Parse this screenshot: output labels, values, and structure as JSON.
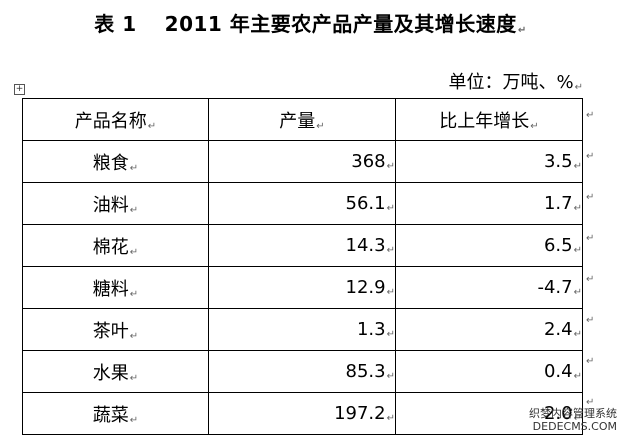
{
  "title": {
    "label": "表 1",
    "text": "2011 年主要农产品产量及其增长速度"
  },
  "unit": "单位：万吨、%",
  "table": {
    "headers": [
      "产品名称",
      "产量",
      "比上年增长"
    ],
    "rows": [
      {
        "name": "粮食",
        "output": "368",
        "growth": "3.5"
      },
      {
        "name": "油料",
        "output": "56.1",
        "growth": "1.7"
      },
      {
        "name": "棉花",
        "output": "14.3",
        "growth": "6.5"
      },
      {
        "name": "糖料",
        "output": "12.9",
        "growth": "-4.7"
      },
      {
        "name": "茶叶",
        "output": "1.3",
        "growth": "2.4"
      },
      {
        "name": "水果",
        "output": "85.3",
        "growth": "0.4"
      },
      {
        "name": "蔬菜",
        "output": "197.2",
        "growth": "2.0"
      }
    ]
  },
  "watermark": {
    "line1": "织梦内容管理系统",
    "line2": "DEDECMS.COM"
  }
}
